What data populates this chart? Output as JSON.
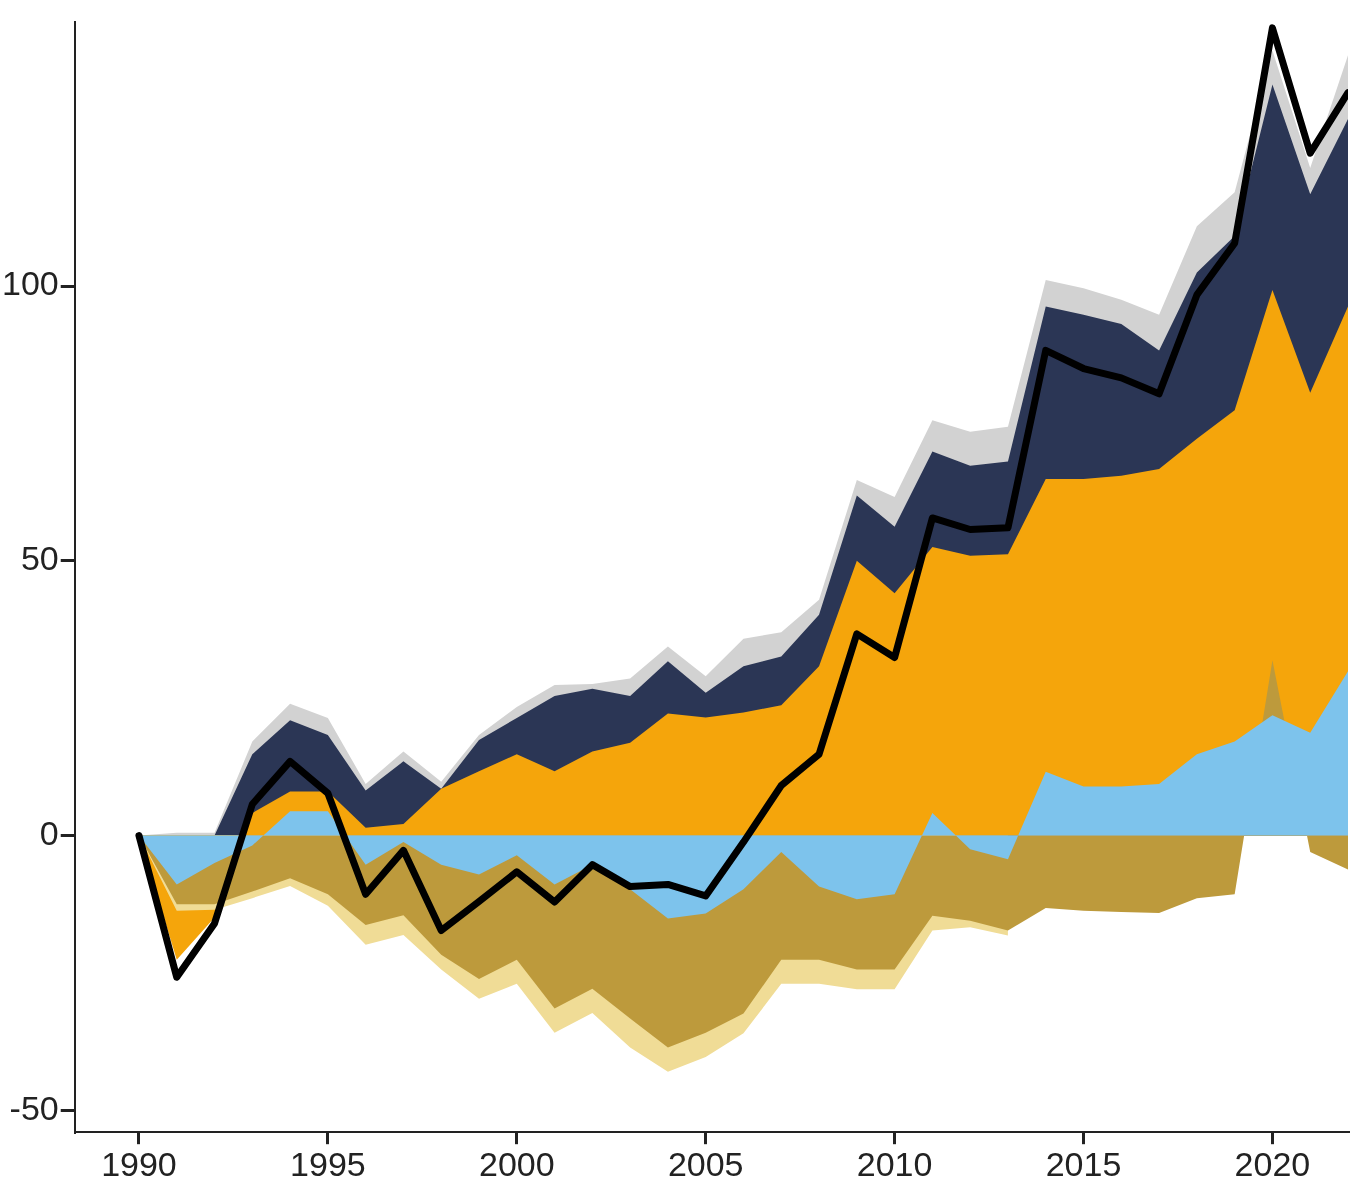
{
  "chart_data": {
    "type": "area",
    "x": [
      1990,
      1991,
      1992,
      1993,
      1994,
      1995,
      1996,
      1997,
      1998,
      1999,
      2000,
      2001,
      2002,
      2003,
      2004,
      2005,
      2006,
      2007,
      2008,
      2009,
      2010,
      2011,
      2012,
      2013,
      2014,
      2015,
      2016,
      2017,
      2018,
      2019,
      2020,
      2021,
      2022
    ],
    "xlim": [
      1988.3,
      2022
    ],
    "xticks": [
      1990,
      1995,
      2000,
      2005,
      2010,
      2015,
      2020
    ],
    "ylim": [
      -54,
      148
    ],
    "yticks": [
      -50,
      0,
      50,
      100
    ],
    "series": [
      {
        "color": "#7dc3ec",
        "values": [
          0,
          -8.9,
          -5,
          -1.8,
          4.4,
          4.4,
          -5.3,
          -1.2,
          -5.3,
          -7.1,
          -3.6,
          -8.9,
          -5.3,
          -9.8,
          -15.1,
          -14.2,
          -9.8,
          -3,
          -9.3,
          -11.6,
          -10.7,
          4.1,
          -2.5,
          -4.3,
          11.6,
          8.9,
          8.9,
          9.4,
          14.8,
          17.1,
          21.9,
          18.7,
          29.9
        ]
      },
      {
        "color": "#bd9a3c",
        "values": [
          0,
          -12.5,
          -12.5,
          -10.2,
          -7.8,
          -10.7,
          -16.3,
          -14.5,
          -21.7,
          -26.1,
          -22.6,
          -31.5,
          -27.9,
          -33.3,
          -38.6,
          -35.9,
          -32.4,
          -22.6,
          -22.6,
          -24.4,
          -24.4,
          -14.6,
          -15.5,
          -17.3,
          -13.2,
          -13.7,
          -13.9,
          -14.1,
          -11.4,
          -10.7,
          31.9,
          -3,
          -6.2
        ]
      },
      {
        "color": "#f0dc96",
        "values": [
          0,
          -13.7,
          -13.5,
          -11.4,
          -9.2,
          -12.8,
          -19.9,
          -18.1,
          -24.4,
          -29.7,
          -27,
          -35.9,
          -32.3,
          -38.6,
          -43,
          -40.3,
          -36,
          -27,
          -27,
          -28,
          -28,
          -17.3,
          -16.7,
          -18.2,
          null,
          null,
          null,
          null,
          null,
          null,
          null,
          null,
          null
        ]
      },
      {
        "color": "#f5a50b",
        "values": [
          0,
          -22.6,
          -14.9,
          4.1,
          8,
          8,
          1.4,
          2.1,
          8.5,
          11.7,
          14.8,
          11.7,
          15.3,
          16.9,
          22.2,
          21.5,
          22.4,
          23.7,
          30.8,
          50,
          44.1,
          52.5,
          50.9,
          51.2,
          64.9,
          64.9,
          65.5,
          66.7,
          72.2,
          77.4,
          99.3,
          80.6,
          96.3
        ]
      },
      {
        "color": "#2b3655",
        "values": [
          0,
          0,
          0,
          14.8,
          21,
          18.3,
          8.2,
          13.5,
          8.5,
          17.4,
          21.4,
          25.4,
          26.7,
          25.4,
          31.7,
          26,
          30.8,
          32.6,
          40.2,
          61.9,
          56.2,
          69.9,
          67.3,
          68.1,
          96.3,
          94.8,
          93.1,
          88.3,
          102.5,
          109.1,
          136.7,
          116.7,
          130.4
        ]
      },
      {
        "color": "#d2d2d2",
        "values": [
          0,
          0.5,
          0.5,
          17.1,
          24,
          21.4,
          9.4,
          15.3,
          9.8,
          18.3,
          23.4,
          27.4,
          27.6,
          28.6,
          34.4,
          29,
          35.8,
          37,
          42.9,
          64.7,
          61.6,
          75.6,
          73.5,
          74.4,
          101.1,
          99.6,
          97.5,
          94.8,
          110.9,
          117.1,
          142.9,
          121.5,
          142
        ]
      },
      {
        "type": "line",
        "color": "#000000",
        "values": [
          0,
          -25.8,
          -16,
          5.7,
          13.5,
          7.7,
          -10.7,
          -2.7,
          -17.3,
          -12,
          -6.6,
          -12.1,
          -5.3,
          -9.3,
          -8.9,
          -11,
          -1.2,
          9.1,
          14.8,
          36.7,
          32.4,
          57.8,
          55.7,
          56,
          88.3,
          85,
          83.3,
          80.4,
          98.4,
          107.8,
          147,
          124.2,
          135.2
        ]
      }
    ]
  }
}
